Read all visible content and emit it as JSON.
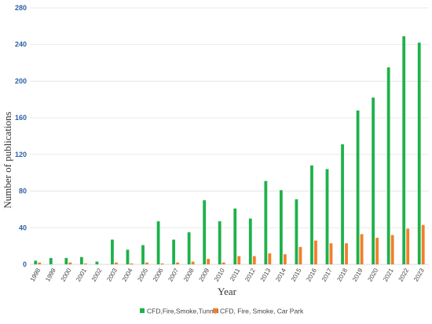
{
  "chart_data": {
    "type": "bar",
    "title": "",
    "xlabel": "Year",
    "ylabel": "Number of publications",
    "ylim": [
      0,
      280
    ],
    "yticks": [
      0,
      40,
      80,
      120,
      160,
      200,
      240,
      280
    ],
    "grid": true,
    "legend_position": "bottom",
    "categories": [
      "1998",
      "1999",
      "2000",
      "2001",
      "2002",
      "2003",
      "2004",
      "2005",
      "2006",
      "2007",
      "2008",
      "2009",
      "2010",
      "2011",
      "2012",
      "2013",
      "2014",
      "2015",
      "2016",
      "2017",
      "2018",
      "2019",
      "2020",
      "2021",
      "2022",
      "2023"
    ],
    "series": [
      {
        "name": "CFD,Fire,Smoke,Tunnel",
        "color": "#1fb14a",
        "values": [
          4,
          7,
          7,
          8,
          3,
          27,
          16,
          21,
          47,
          27,
          35,
          70,
          47,
          61,
          50,
          91,
          81,
          71,
          108,
          104,
          131,
          168,
          182,
          215,
          249,
          242
        ]
      },
      {
        "name": "CFD, Fire, Smoke, Car Park",
        "color": "#f07f2a",
        "values": [
          2,
          0,
          2,
          1,
          0,
          2,
          1,
          2,
          1,
          2,
          3,
          6,
          2,
          9,
          9,
          12,
          11,
          19,
          26,
          23,
          23,
          33,
          29,
          32,
          39,
          43
        ]
      }
    ]
  }
}
